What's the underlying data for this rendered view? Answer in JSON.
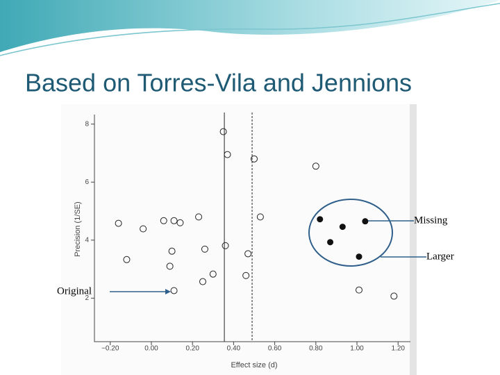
{
  "chart_data": {
    "type": "scatter",
    "title": "Based on Torres-Vila and Jennions",
    "xlabel": "Effect size (d)",
    "ylabel": "Precision (1/SE)",
    "xlim": [
      -0.26,
      1.26
    ],
    "ylim": [
      0.5,
      8.4
    ],
    "xticks": [
      {
        "value": -0.2,
        "label": "−0.20"
      },
      {
        "value": 0,
        "label": "0.00"
      },
      {
        "value": 0.2,
        "label": "0.20"
      },
      {
        "value": 0.4,
        "label": "0.40"
      },
      {
        "value": 0.6,
        "label": "0.60"
      },
      {
        "value": 0.8,
        "label": "0.80"
      },
      {
        "value": 1,
        "label": "1.00"
      },
      {
        "value": 1.2,
        "label": "1.20"
      }
    ],
    "yticks": [
      2,
      4,
      6,
      8
    ],
    "reference_lines": [
      0.355,
      0.49
    ],
    "series": [
      {
        "marker": "open",
        "color": "#222222",
        "x": [
          0.35,
          0.37,
          0.5,
          0.8,
          0.53,
          -0.16,
          -0.04,
          0.06,
          0.11,
          0.14,
          0.23,
          0.36,
          0.1,
          0.26,
          0.47,
          -0.12,
          0.09,
          0.3,
          0.46,
          0.25,
          0.11,
          1.01,
          1.18
        ],
        "values": [
          7.74,
          6.95,
          6.8,
          6.55,
          4.8,
          4.58,
          4.39,
          4.67,
          4.67,
          4.6,
          4.8,
          3.81,
          3.62,
          3.69,
          3.53,
          3.33,
          3.1,
          2.83,
          2.78,
          2.57,
          2.26,
          2.28,
          2.07
        ]
      },
      {
        "marker": "filled",
        "color": "#111111",
        "x": [
          0.82,
          0.93,
          1.04,
          0.87,
          1.01
        ],
        "values": [
          4.72,
          4.46,
          4.65,
          3.93,
          3.43
        ]
      }
    ],
    "annotations": [
      "Missing",
      "Larger",
      "Original"
    ]
  }
}
